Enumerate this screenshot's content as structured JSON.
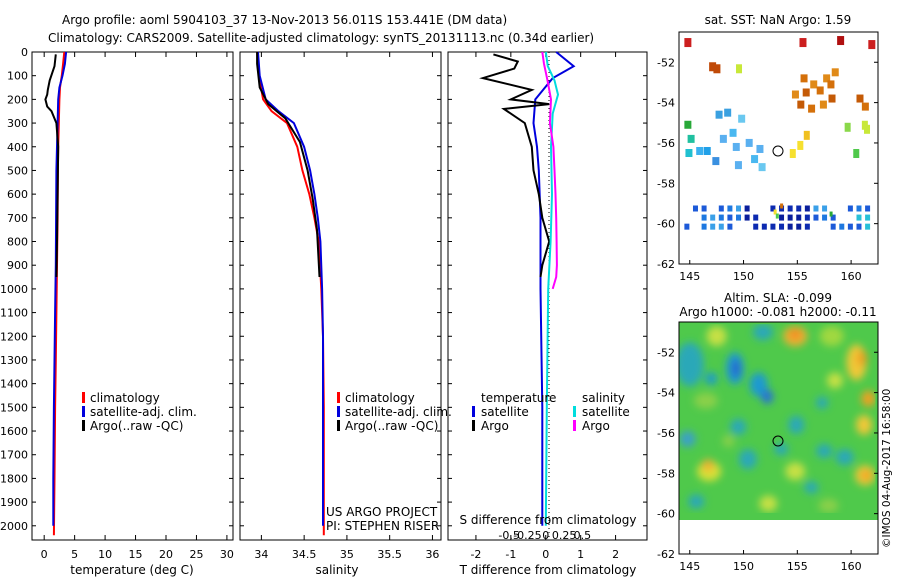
{
  "header": {
    "line1": "Argo profile: aoml 5904103_37 13-Nov-2013 56.011S 153.441E (DM data)",
    "line2": "Climatology: CARS2009. Satellite-adjusted climatology: synTS_20131113.nc (0.34d earlier)"
  },
  "credits": {
    "project": "US ARGO PROJECT",
    "pi": "PI: STEPHEN RISER",
    "imos": "©IMOS 04-Aug-2017 16:58:00"
  },
  "colors": {
    "climatology": "#ff0000",
    "satellite": "#0000dd",
    "argo": "#000000",
    "argo_salinity": "#ff00ff",
    "satellite_salinity": "#00dddd"
  },
  "chart_data": [
    {
      "id": "temperature",
      "type": "line",
      "xlabel": "temperature (deg C)",
      "ylabel": "",
      "xlim": [
        -2,
        31
      ],
      "ylim": [
        2060,
        0
      ],
      "xticks": [
        0,
        5,
        10,
        15,
        20,
        25,
        30
      ],
      "yticks": [
        0,
        100,
        200,
        300,
        400,
        500,
        600,
        700,
        800,
        900,
        1000,
        1100,
        1200,
        1300,
        1400,
        1500,
        1600,
        1700,
        1800,
        1900,
        2000
      ],
      "legend": [
        "climatology",
        "satellite-adj. clim.",
        "Argo(..raw -QC)"
      ],
      "series": [
        {
          "name": "climatology",
          "color": "#ff0000",
          "x": [
            3.3,
            3.1,
            2.9,
            2.6,
            2.5,
            2.4,
            2.3,
            2.25,
            2.2,
            2.1,
            2.0,
            1.9,
            1.8,
            1.7,
            1.6
          ],
          "y": [
            0,
            50,
            100,
            150,
            200,
            300,
            400,
            500,
            700,
            900,
            1100,
            1300,
            1500,
            1800,
            2040
          ]
        },
        {
          "name": "satellite-adj. clim.",
          "color": "#0000dd",
          "x": [
            3.6,
            3.4,
            3.0,
            2.5,
            2.3,
            2.2,
            2.1,
            2.0,
            1.95,
            1.9,
            1.8,
            1.7,
            1.6,
            1.5,
            1.5
          ],
          "y": [
            0,
            50,
            100,
            150,
            200,
            300,
            400,
            500,
            700,
            900,
            1100,
            1300,
            1500,
            1800,
            2000
          ]
        },
        {
          "name": "Argo(..raw -QC)",
          "color": "#000000",
          "x": [
            1.9,
            1.7,
            0.9,
            0.6,
            0.5,
            0.2,
            0.5,
            1.2,
            2.0,
            2.3,
            2.2,
            2.1,
            2.0
          ],
          "y": [
            10,
            60,
            120,
            160,
            180,
            200,
            230,
            250,
            300,
            400,
            600,
            800,
            950
          ]
        }
      ]
    },
    {
      "id": "salinity",
      "type": "line",
      "xlabel": "salinity",
      "ylabel": "",
      "xlim": [
        33.75,
        36.1
      ],
      "ylim": [
        2060,
        0
      ],
      "xticks": [
        34,
        34.5,
        35,
        35.5,
        36
      ],
      "legend": [
        "climatology",
        "satellite-adj. clim.",
        "Argo(..raw -QC)"
      ],
      "series": [
        {
          "name": "climatology",
          "color": "#ff0000",
          "x": [
            33.95,
            33.97,
            34.02,
            34.12,
            34.3,
            34.42,
            34.48,
            34.56,
            34.62,
            34.67,
            34.7,
            34.72,
            34.73,
            34.73
          ],
          "y": [
            0,
            100,
            200,
            250,
            300,
            400,
            500,
            600,
            700,
            800,
            1000,
            1200,
            1500,
            2040
          ]
        },
        {
          "name": "satellite-adj. clim.",
          "color": "#0000dd",
          "x": [
            33.96,
            33.98,
            34.05,
            34.2,
            34.38,
            34.5,
            34.57,
            34.62,
            34.66,
            34.69,
            34.71,
            34.72,
            34.72
          ],
          "y": [
            0,
            100,
            200,
            250,
            300,
            400,
            500,
            600,
            700,
            800,
            1000,
            1200,
            2000
          ]
        },
        {
          "name": "Argo(..raw -QC)",
          "color": "#000000",
          "x": [
            33.95,
            33.95,
            33.98,
            34.08,
            34.28,
            34.45,
            34.54,
            34.6,
            34.65,
            34.68
          ],
          "y": [
            0,
            50,
            150,
            220,
            280,
            380,
            500,
            620,
            750,
            950
          ]
        }
      ]
    },
    {
      "id": "differences",
      "type": "line",
      "xlabel": "T difference from climatology",
      "x2label": "S difference from climatology",
      "ylabel": "",
      "xlim": [
        -2.8,
        2.9
      ],
      "ylim": [
        2060,
        0
      ],
      "xticks": [
        -2,
        -1,
        0,
        1,
        2
      ],
      "x2ticks": [
        -0.5,
        -0.25,
        0,
        0.25,
        0.5
      ],
      "legend_titles": [
        "temperature",
        "salinity"
      ],
      "legend": [
        "satellite",
        "Argo",
        "satellite",
        "Argo"
      ],
      "series": [
        {
          "name": "satellite",
          "color": "#0000dd",
          "x": [
            0.3,
            0.8,
            0.2,
            -0.3,
            -0.35,
            -0.25,
            -0.2,
            -0.15,
            -0.15,
            -0.1,
            -0.1
          ],
          "y": [
            0,
            60,
            110,
            200,
            300,
            400,
            500,
            700,
            1000,
            1500,
            2000
          ]
        },
        {
          "name": "Argo",
          "color": "#000000",
          "x": [
            -1.5,
            -0.8,
            -0.9,
            -1.8,
            -0.4,
            -1.0,
            0.1,
            -1.2,
            -0.6,
            -0.4,
            -0.35,
            -0.2,
            -0.1,
            0.1,
            -0.1,
            -0.15
          ],
          "y": [
            10,
            40,
            70,
            110,
            160,
            200,
            220,
            240,
            300,
            400,
            500,
            600,
            700,
            800,
            900,
            950
          ]
        },
        {
          "name": "satellite",
          "color": "#00dddd",
          "x": [
            0.0,
            0.06,
            0.25,
            0.35,
            0.2,
            0.15,
            0.18,
            0.14,
            0.07,
            0.03,
            0.0
          ],
          "y": [
            0,
            60,
            120,
            180,
            260,
            400,
            600,
            800,
            1000,
            1500,
            2000
          ]
        },
        {
          "name": "Argo",
          "color": "#ff00ff",
          "x": [
            -0.1,
            -0.05,
            0.05,
            0.15,
            0.12,
            0.22,
            0.25,
            0.28,
            0.3,
            0.31,
            0.32,
            0.3,
            0.2
          ],
          "y": [
            0,
            50,
            120,
            200,
            300,
            400,
            500,
            600,
            700,
            800,
            900,
            950,
            1000
          ]
        }
      ]
    },
    {
      "id": "sst-map",
      "type": "heatmap",
      "title": "sat. SST: NaN Argo: 1.59",
      "xlim": [
        144,
        162.5
      ],
      "ylim": [
        -62,
        -50.5
      ],
      "xticks": [
        145,
        150,
        155,
        160
      ],
      "yticks": [
        -52,
        -54,
        -56,
        -58,
        -60,
        -62
      ],
      "argo_position": {
        "lon": 153.441,
        "lat": -56.011
      }
    },
    {
      "id": "sla-map",
      "type": "heatmap",
      "title": "Altim. SLA: -0.099",
      "subtitle": "Argo h1000: -0.081 h2000: -0.11",
      "xlim": [
        144,
        162.5
      ],
      "ylim": [
        -62,
        -50.5
      ],
      "xticks": [
        145,
        150,
        155,
        160
      ],
      "yticks": [
        -52,
        -54,
        -56,
        -58,
        -60,
        -62
      ],
      "argo_position": {
        "lon": 153.441,
        "lat": -56.011
      }
    }
  ]
}
